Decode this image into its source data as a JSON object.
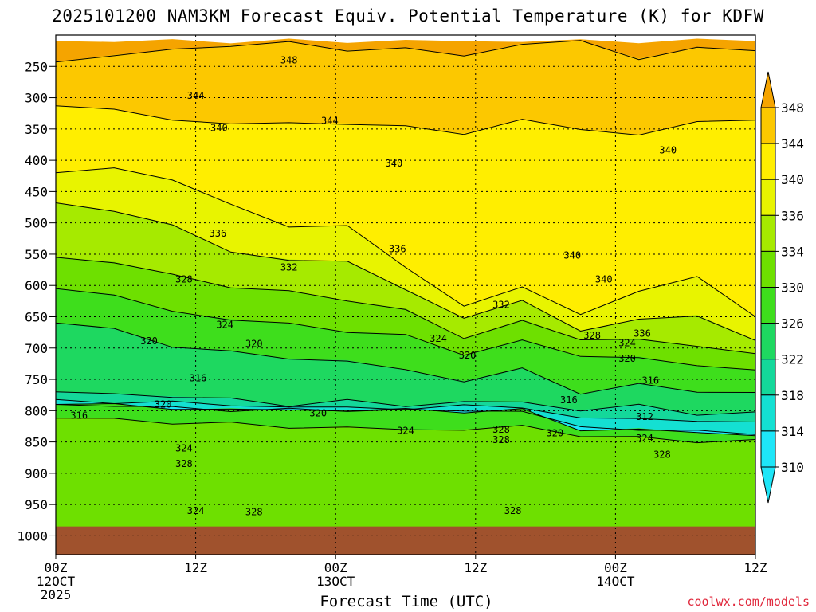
{
  "chart_data": {
    "type": "contour",
    "title": "2025101200 NAM3KM Forecast Equiv. Potential Temperature (K) for KDFW",
    "xlabel": "Forecast Time (UTC)",
    "ylabel": "",
    "credit": "coolwx.com/models",
    "pressure_ticks": [
      250,
      300,
      350,
      400,
      450,
      500,
      550,
      600,
      650,
      700,
      750,
      800,
      850,
      900,
      950,
      1000
    ],
    "pressure_range": [
      1030,
      200
    ],
    "time_range_hours": [
      0,
      60
    ],
    "time_ticks": [
      {
        "hour": 0,
        "label": "00Z",
        "sub": "12OCT",
        "sub2": "2025"
      },
      {
        "hour": 12,
        "label": "12Z",
        "sub": "",
        "sub2": ""
      },
      {
        "hour": 24,
        "label": "00Z",
        "sub": "13OCT",
        "sub2": ""
      },
      {
        "hour": 36,
        "label": "12Z",
        "sub": "",
        "sub2": ""
      },
      {
        "hour": 48,
        "label": "00Z",
        "sub": "14OCT",
        "sub2": ""
      },
      {
        "hour": 60,
        "label": "12Z",
        "sub": "",
        "sub2": ""
      }
    ],
    "colorbar": {
      "levels": [
        348,
        344,
        340,
        336,
        334,
        330,
        326,
        322,
        318,
        314,
        310
      ],
      "colors": [
        "#f5a400",
        "#fcc800",
        "#ffee00",
        "#e8f400",
        "#a6ea00",
        "#6ee000",
        "#3ede1c",
        "#1ed860",
        "#14d89a",
        "#14e0d2",
        "#1ee6f8"
      ]
    },
    "bands": [
      {
        "label": "348",
        "color": "#f5a400",
        "top": [
          210,
          210,
          210,
          210,
          210,
          210,
          210,
          210,
          210,
          210,
          210,
          210,
          210
        ],
        "bottom": [
          243,
          235,
          222,
          217,
          213,
          222,
          224,
          230,
          217,
          208,
          238,
          222,
          225
        ]
      },
      {
        "label": "344",
        "color": "#fcc800",
        "top": [
          243,
          235,
          222,
          217,
          213,
          222,
          224,
          230,
          217,
          208,
          238,
          222,
          225
        ],
        "bottom": [
          313,
          322,
          332,
          345,
          338,
          343,
          346,
          356,
          338,
          347,
          363,
          336,
          336
        ]
      },
      {
        "label": "340",
        "color": "#ffee00",
        "top": [
          313,
          322,
          332,
          345,
          338,
          343,
          346,
          356,
          338,
          347,
          363,
          336,
          336
        ],
        "bottom": [
          420,
          412,
          430,
          473,
          503,
          508,
          568,
          635,
          602,
          645,
          612,
          582,
          650
        ]
      },
      {
        "label": "336",
        "color": "#e8f400",
        "top": [
          420,
          412,
          430,
          473,
          503,
          508,
          568,
          635,
          602,
          645,
          612,
          582,
          650
        ],
        "bottom": [
          468,
          478,
          506,
          545,
          560,
          563,
          604,
          656,
          620,
          676,
          652,
          649,
          688
        ]
      },
      {
        "label": "334",
        "color": "#a6ea00",
        "top": [
          468,
          478,
          506,
          545,
          560,
          563,
          604,
          656,
          620,
          676,
          652,
          649,
          688
        ],
        "bottom": [
          555,
          562,
          585,
          600,
          612,
          622,
          640,
          685,
          654,
          690,
          682,
          701,
          709
        ]
      },
      {
        "label": "330",
        "color": "#6ee000",
        "top": [
          555,
          562,
          585,
          600,
          612,
          622,
          640,
          685,
          654,
          690,
          682,
          701,
          709
        ],
        "bottom": [
          605,
          618,
          640,
          655,
          662,
          672,
          682,
          708,
          690,
          712,
          715,
          730,
          735
        ]
      },
      {
        "label": "326",
        "color": "#3ede1c",
        "top": [
          605,
          618,
          640,
          655,
          662,
          672,
          682,
          708,
          690,
          712,
          715,
          730,
          735
        ],
        "bottom": [
          660,
          672,
          695,
          708,
          715,
          722,
          735,
          752,
          735,
          770,
          760,
          768,
          771
        ]
      },
      {
        "label": "322",
        "color": "#1ed860",
        "top": [
          660,
          672,
          695,
          708,
          715,
          722,
          735,
          752,
          735,
          770,
          760,
          768,
          771
        ],
        "bottom": [
          770,
          772,
          778,
          782,
          790,
          786,
          790,
          788,
          785,
          800,
          792,
          804,
          802
        ]
      },
      {
        "label": "318",
        "color": "#14d89a",
        "top": [
          770,
          772,
          778,
          782,
          790,
          786,
          790,
          788,
          785,
          800,
          792,
          804,
          802
        ],
        "bottom": [
          782,
          785,
          788,
          790,
          795,
          795,
          796,
          794,
          792,
          815,
          810,
          818,
          818
        ]
      },
      {
        "label": "314",
        "color": "#14e0d2",
        "top": [
          782,
          785,
          788,
          790,
          795,
          795,
          796,
          794,
          792,
          815,
          810,
          818,
          818
        ],
        "bottom": [
          790,
          792,
          796,
          798,
          800,
          798,
          800,
          800,
          800,
          828,
          828,
          835,
          838
        ]
      },
      {
        "label": "310",
        "color": "#1ee6f8",
        "top": [
          790,
          792,
          796,
          798,
          800,
          798,
          800,
          800,
          800,
          828,
          828,
          835,
          838
        ],
        "bottom": [
          790,
          792,
          796,
          798,
          800,
          798,
          800,
          800,
          800,
          830,
          830,
          836,
          840
        ]
      },
      {
        "label": "326",
        "color": "#3ede1c",
        "top": [
          790,
          792,
          796,
          798,
          800,
          798,
          800,
          800,
          800,
          830,
          830,
          836,
          840
        ],
        "bottom": [
          812,
          815,
          818,
          822,
          825,
          828,
          830,
          830,
          826,
          838,
          845,
          848,
          846
        ]
      },
      {
        "label": "330",
        "color": "#6ee000",
        "top": [
          812,
          815,
          818,
          822,
          825,
          828,
          830,
          830,
          826,
          838,
          845,
          848,
          846
        ],
        "bottom": [
          1030,
          1030,
          1030,
          1030,
          1030,
          1030,
          1030,
          1030,
          1030,
          1030,
          1030,
          1030,
          1030
        ]
      }
    ],
    "ground_pressure": 985,
    "ground_color": "#a0522d",
    "contour_labels": [
      {
        "text": "348",
        "hour": 20.0,
        "p": 240
      },
      {
        "text": "344",
        "hour": 12.0,
        "p": 297
      },
      {
        "text": "344",
        "hour": 23.5,
        "p": 337
      },
      {
        "text": "340",
        "hour": 14.0,
        "p": 348
      },
      {
        "text": "340",
        "hour": 29.0,
        "p": 405
      },
      {
        "text": "340",
        "hour": 52.5,
        "p": 384
      },
      {
        "text": "336",
        "hour": 13.9,
        "p": 517
      },
      {
        "text": "336",
        "hour": 29.3,
        "p": 542
      },
      {
        "text": "340",
        "hour": 44.3,
        "p": 552
      },
      {
        "text": "340",
        "hour": 47.0,
        "p": 590
      },
      {
        "text": "332",
        "hour": 20.0,
        "p": 571
      },
      {
        "text": "328",
        "hour": 11.0,
        "p": 590
      },
      {
        "text": "332",
        "hour": 38.2,
        "p": 631
      },
      {
        "text": "324",
        "hour": 14.5,
        "p": 663
      },
      {
        "text": "320",
        "hour": 8.0,
        "p": 689
      },
      {
        "text": "320",
        "hour": 17.0,
        "p": 693
      },
      {
        "text": "324",
        "hour": 32.8,
        "p": 685
      },
      {
        "text": "328",
        "hour": 46.0,
        "p": 680
      },
      {
        "text": "336",
        "hour": 50.3,
        "p": 677
      },
      {
        "text": "324",
        "hour": 49.0,
        "p": 692
      },
      {
        "text": "320",
        "hour": 49.0,
        "p": 717
      },
      {
        "text": "320",
        "hour": 35.3,
        "p": 712
      },
      {
        "text": "316",
        "hour": 12.2,
        "p": 748
      },
      {
        "text": "316",
        "hour": 51.0,
        "p": 752
      },
      {
        "text": "316",
        "hour": 2.0,
        "p": 808
      },
      {
        "text": "320",
        "hour": 9.2,
        "p": 790
      },
      {
        "text": "320",
        "hour": 22.5,
        "p": 804
      },
      {
        "text": "316",
        "hour": 44.0,
        "p": 783
      },
      {
        "text": "312",
        "hour": 50.5,
        "p": 810
      },
      {
        "text": "324",
        "hour": 30.0,
        "p": 832
      },
      {
        "text": "328",
        "hour": 38.2,
        "p": 830
      },
      {
        "text": "328",
        "hour": 38.2,
        "p": 847
      },
      {
        "text": "320",
        "hour": 42.8,
        "p": 836
      },
      {
        "text": "324",
        "hour": 50.5,
        "p": 844
      },
      {
        "text": "328",
        "hour": 52.0,
        "p": 870
      },
      {
        "text": "324",
        "hour": 11.0,
        "p": 860
      },
      {
        "text": "328",
        "hour": 11.0,
        "p": 885
      },
      {
        "text": "324",
        "hour": 12.0,
        "p": 960
      },
      {
        "text": "328",
        "hour": 17.0,
        "p": 962
      },
      {
        "text": "328",
        "hour": 39.2,
        "p": 960
      }
    ]
  }
}
